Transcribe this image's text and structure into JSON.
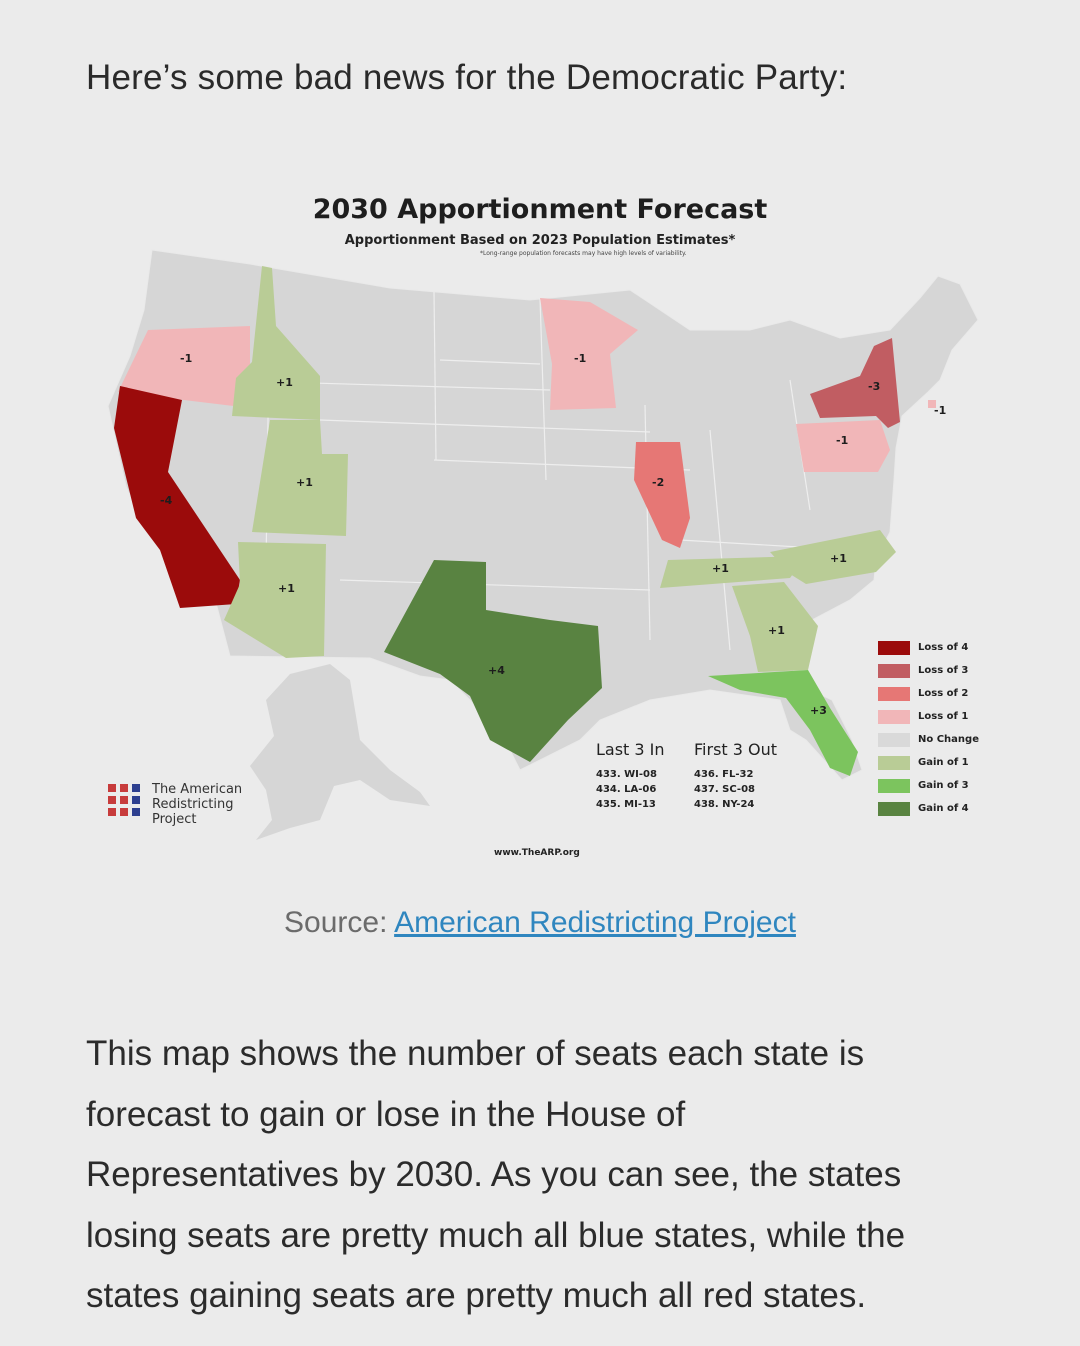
{
  "post": {
    "heading": "Here’s some bad news for the Democratic Party:",
    "source_prefix": "Source: ",
    "source_link": "American Redistricting Project",
    "body_lines": [
      "This map shows the number of seats each state is",
      "forecast to gain or lose in the House of",
      "Representatives by 2030. As you can see, the states",
      "losing seats are pretty much all blue states, while the",
      "states gaining seats are pretty much all red states."
    ]
  },
  "map": {
    "title": "2030 Apportionment Forecast",
    "subtitle": "Apportionment Based on 2023 Population Estimates*",
    "note": "*Long-range population forecasts may have high levels of variability.",
    "states": [
      {
        "state": "Oregon",
        "change": -1,
        "label": "-1"
      },
      {
        "state": "California",
        "change": -4,
        "label": "-4"
      },
      {
        "state": "Idaho",
        "change": 1,
        "label": "+1"
      },
      {
        "state": "Utah",
        "change": 1,
        "label": "+1"
      },
      {
        "state": "Arizona",
        "change": 1,
        "label": "+1"
      },
      {
        "state": "Texas",
        "change": 4,
        "label": "+4"
      },
      {
        "state": "Minnesota",
        "change": -1,
        "label": "-1"
      },
      {
        "state": "Illinois",
        "change": -2,
        "label": "-2"
      },
      {
        "state": "Tennessee",
        "change": 1,
        "label": "+1"
      },
      {
        "state": "North Carolina",
        "change": 1,
        "label": "+1"
      },
      {
        "state": "Georgia",
        "change": 1,
        "label": "+1"
      },
      {
        "state": "Florida",
        "change": 3,
        "label": "+3"
      },
      {
        "state": "New York",
        "change": -3,
        "label": "-3"
      },
      {
        "state": "Pennsylvania",
        "change": -1,
        "label": "-1"
      },
      {
        "state": "Rhode Island",
        "change": -1,
        "label": "-1"
      }
    ],
    "legend": [
      {
        "label": "Loss of 4",
        "color": "#9b0b0b"
      },
      {
        "label": "Loss of 3",
        "color": "#c15d62"
      },
      {
        "label": "Loss of 2",
        "color": "#e67775"
      },
      {
        "label": "Loss of 1",
        "color": "#f1b6b8"
      },
      {
        "label": "No Change",
        "color": "#d9d9d9"
      },
      {
        "label": "Gain of 1",
        "color": "#b9cc96"
      },
      {
        "label": "Gain of 3",
        "color": "#7cc45e"
      },
      {
        "label": "Gain of 4",
        "color": "#598341"
      }
    ],
    "last_in": {
      "heading": "Last 3 In",
      "items": [
        "433. WI-08",
        "434. LA-06",
        "435. MI-13"
      ]
    },
    "first_out": {
      "heading": "First 3 Out",
      "items": [
        "436. FL-32",
        "437. SC-08",
        "438. NY-24"
      ]
    },
    "logo_text": [
      "The American",
      "Redistricting",
      "Project"
    ],
    "logo_colors": [
      "#c73b3b",
      "#c73b3b",
      "#2d3f8f"
    ],
    "url": "www.TheARP.org"
  }
}
